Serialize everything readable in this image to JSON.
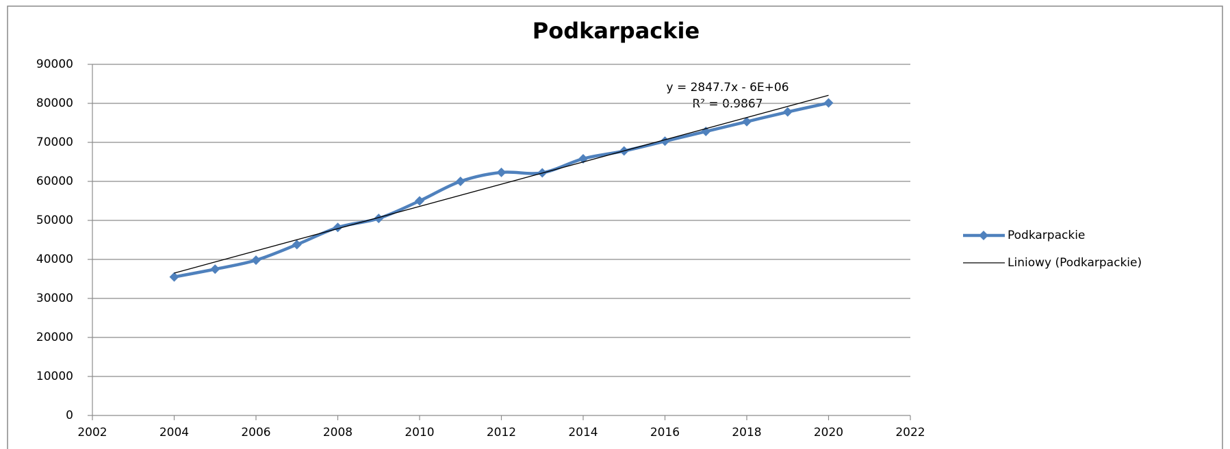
{
  "chart_data": {
    "type": "line",
    "title": "Podkarpackie",
    "xlim": [
      2002,
      2022
    ],
    "xticks": [
      2002,
      2004,
      2006,
      2008,
      2010,
      2012,
      2014,
      2016,
      2018,
      2020,
      2022
    ],
    "ylim": [
      0,
      90000
    ],
    "yticks": [
      0,
      10000,
      20000,
      30000,
      40000,
      50000,
      60000,
      70000,
      80000,
      90000
    ],
    "grid": true,
    "legend": "right",
    "annotations": [
      "y = 2847.7x - 6E+06",
      "R² = 0.9867"
    ],
    "series": [
      {
        "name": "Podkarpackie",
        "color": "#4f81bd",
        "smooth": true,
        "marker": "diamond",
        "x": [
          2004,
          2005,
          2006,
          2007,
          2008,
          2009,
          2010,
          2011,
          2012,
          2013,
          2014,
          2015,
          2016,
          2017,
          2018,
          2019,
          2020
        ],
        "values": [
          35500,
          37500,
          39800,
          43800,
          48200,
          50500,
          55000,
          60000,
          62300,
          62200,
          65800,
          67800,
          70300,
          72800,
          75300,
          77800,
          80100
        ]
      },
      {
        "name": "Liniowy (Podkarpackie)",
        "color": "#000000",
        "smooth": false,
        "x": [
          2004,
          2020
        ],
        "values": [
          36500,
          82063
        ]
      }
    ]
  }
}
